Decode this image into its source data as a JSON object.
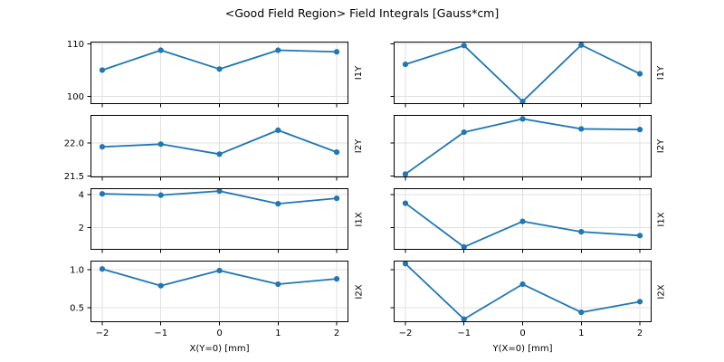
{
  "colors": {
    "line": "#1f77b4",
    "grid": "#e0e0e0",
    "spine": "#000000",
    "background": "#ffffff"
  },
  "chart_data": {
    "type": "line",
    "title": "<Good Field Region> Field Integrals [Gauss*cm]",
    "grid": true,
    "legend": "none",
    "marker": "o",
    "line_color": "#1f77b4",
    "x": [
      -2,
      -1,
      0,
      1,
      2
    ],
    "xlim": [
      -2.2,
      2.2
    ],
    "xtick_labels": [
      "−2",
      "−1",
      "0",
      "1",
      "2"
    ],
    "col_xlabels": [
      "X(Y=0) [mm]",
      "Y(X=0) [mm]"
    ],
    "rows": [
      {
        "ylabel": "I1Y",
        "ylim": [
          98.5,
          110.45
        ],
        "yticks": [
          100,
          110
        ],
        "ytick_labels": [
          "100",
          "110"
        ],
        "series": [
          {
            "name": "I1Y vs X(Y=0)",
            "values": [
              105.0,
              108.8,
              105.2,
              108.8,
              108.5
            ]
          },
          {
            "name": "I1Y vs Y(X=0)",
            "values": [
              106.1,
              109.7,
              99.0,
              109.8,
              104.3
            ]
          }
        ]
      },
      {
        "ylabel": "I2Y",
        "ylim": [
          21.48,
          22.42
        ],
        "yticks": [
          21.5,
          22.0
        ],
        "ytick_labels": [
          "21.5",
          "22.0"
        ],
        "series": [
          {
            "name": "I2Y vs X(Y=0)",
            "values": [
              21.94,
              21.98,
              21.83,
              22.19,
              21.86
            ]
          },
          {
            "name": "I2Y vs Y(X=0)",
            "values": [
              21.53,
              22.16,
              22.36,
              22.21,
              22.2
            ]
          }
        ]
      },
      {
        "ylabel": "I1X",
        "ylim": [
          0.66,
          4.39
        ],
        "yticks": [
          2,
          4
        ],
        "ytick_labels": [
          "2",
          "4"
        ],
        "series": [
          {
            "name": "I1X vs X(Y=0)",
            "values": [
              4.05,
              3.97,
              4.22,
              3.45,
              3.78
            ]
          },
          {
            "name": "I1X vs Y(X=0)",
            "values": [
              3.48,
              0.83,
              2.38,
              1.75,
              1.52
            ]
          }
        ]
      },
      {
        "ylabel": "I2X",
        "ylim": [
          0.31,
          1.12
        ],
        "yticks": [
          0.5,
          1.0
        ],
        "ytick_labels": [
          "0.5",
          "1.0"
        ],
        "series": [
          {
            "name": "I2X vs X(Y=0)",
            "values": [
              1.01,
              0.79,
              0.99,
              0.81,
              0.88
            ]
          },
          {
            "name": "I2X vs Y(X=0)",
            "values": [
              1.08,
              0.35,
              0.81,
              0.44,
              0.58
            ]
          }
        ]
      }
    ]
  }
}
